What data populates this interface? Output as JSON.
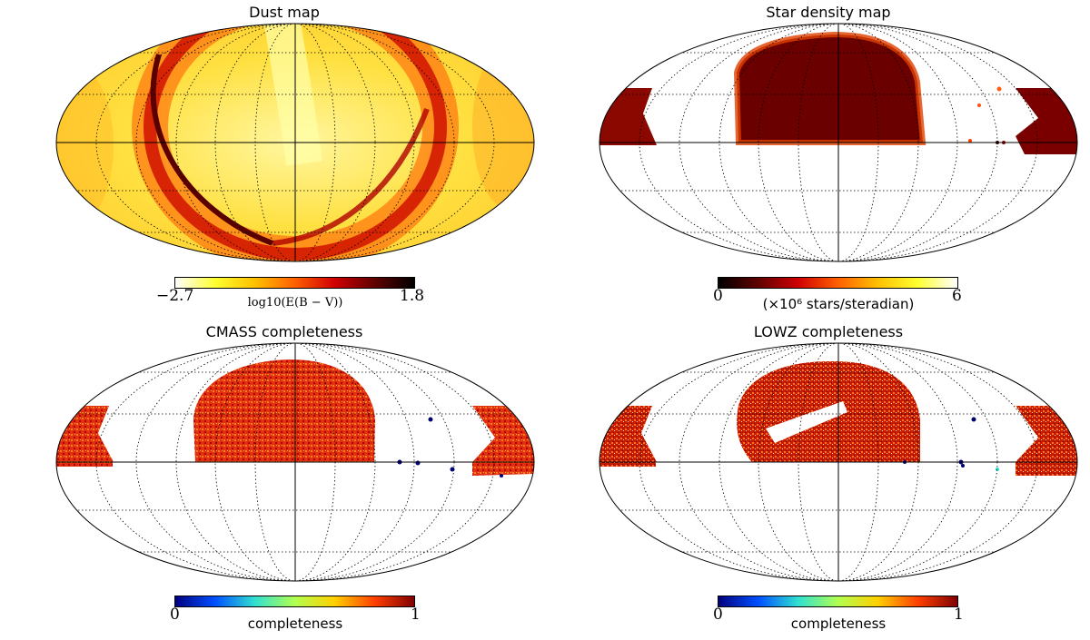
{
  "panels": [
    {
      "id": "dust",
      "title": "Dust map",
      "colorbar": {
        "min_label": "−2.7",
        "max_label": "1.8",
        "label": "log10(E(B − V))",
        "stops": [
          "#ffffff",
          "#ffff30",
          "#ffc000",
          "#ff6000",
          "#d00000",
          "#600000",
          "#000000"
        ]
      }
    },
    {
      "id": "stars",
      "title": "Star density map",
      "colorbar": {
        "min_label": "0",
        "max_label": "6",
        "label": "(×10⁶ stars/steradian)",
        "stops": [
          "#000000",
          "#600000",
          "#d00000",
          "#ff6000",
          "#ffc000",
          "#ffff30",
          "#ffffff"
        ]
      }
    },
    {
      "id": "cmass",
      "title": "CMASS completeness",
      "colorbar": {
        "min_label": "0",
        "max_label": "1",
        "label": "completeness",
        "stops": [
          "#00007f",
          "#0050ff",
          "#30e0d0",
          "#b0ff50",
          "#ffd000",
          "#ff4000",
          "#800000"
        ]
      }
    },
    {
      "id": "lowz",
      "title": "LOWZ completeness",
      "colorbar": {
        "min_label": "0",
        "max_label": "1",
        "label": "completeness",
        "stops": [
          "#00007f",
          "#0050ff",
          "#30e0d0",
          "#b0ff50",
          "#ffd000",
          "#ff4000",
          "#800000"
        ]
      }
    }
  ]
}
